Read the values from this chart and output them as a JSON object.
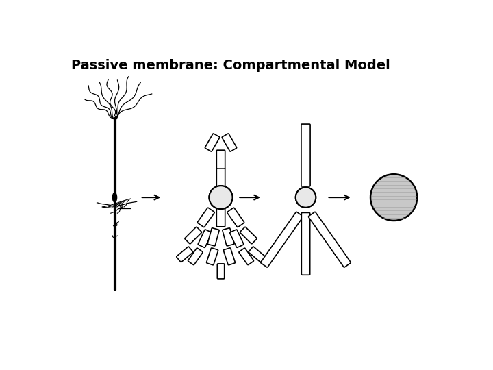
{
  "title": "Passive membrane: Compartmental Model",
  "title_fontsize": 14,
  "bg_color": "#ffffff",
  "line_color": "#000000",
  "gray_fill": "#c8c8c8",
  "light_gray": "#e8e8e8"
}
